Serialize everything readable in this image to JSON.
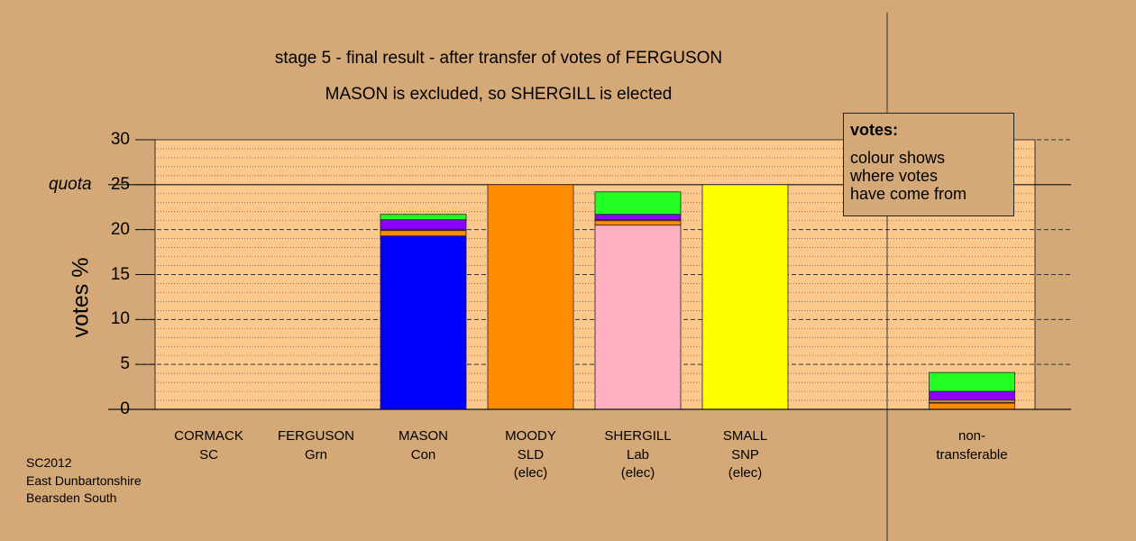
{
  "chart_data": {
    "type": "bar",
    "stacked": true,
    "title": "stage 5 - final result - after transfer of votes of FERGUSON",
    "subtitle": "MASON is excluded, so SHERGILL is elected",
    "ylabel": "votes %",
    "ylim": [
      0,
      30
    ],
    "yticks": [
      0,
      5,
      10,
      15,
      20,
      25,
      30
    ],
    "quota": 25,
    "quota_label": "quota",
    "categories": [
      {
        "name": "CORMACK",
        "party": "SC",
        "note": ""
      },
      {
        "name": "FERGUSON",
        "party": "Grn",
        "note": ""
      },
      {
        "name": "MASON",
        "party": "Con",
        "note": ""
      },
      {
        "name": "MOODY",
        "party": "SLD",
        "note": "(elec)"
      },
      {
        "name": "SHERGILL",
        "party": "Lab",
        "note": "(elec)"
      },
      {
        "name": "SMALL",
        "party": "SNP",
        "note": "(elec)"
      },
      {
        "name": "non-",
        "party": "transferable",
        "note": ""
      }
    ],
    "stacks": [
      [],
      [],
      [
        {
          "color": "#0000ff",
          "value": 19.3
        },
        {
          "color": "#ff8c00",
          "value": 0.6
        },
        {
          "color": "#ff3300",
          "value": 0.1
        },
        {
          "color": "#8b00ff",
          "value": 1.1
        },
        {
          "color": "#22ff22",
          "value": 0.6
        }
      ],
      [
        {
          "color": "#ff8c00",
          "value": 25.0
        }
      ],
      [
        {
          "color": "#ffb0c0",
          "value": 20.5
        },
        {
          "color": "#ff8c00",
          "value": 0.5
        },
        {
          "color": "#ff3300",
          "value": 0.1
        },
        {
          "color": "#8b00ff",
          "value": 0.6
        },
        {
          "color": "#22ff22",
          "value": 2.5
        }
      ],
      [
        {
          "color": "#ffff00",
          "value": 25.0
        }
      ],
      [
        {
          "color": "#ff8c00",
          "value": 0.7
        },
        {
          "color": "#ff3300",
          "value": 0.1
        },
        {
          "color": "#ffff00",
          "value": 0.2
        },
        {
          "color": "#8b00ff",
          "value": 1.0
        },
        {
          "color": "#22ff22",
          "value": 2.1
        }
      ]
    ],
    "legend": {
      "title": "votes:",
      "lines": [
        "colour shows",
        "where votes",
        "have come from"
      ]
    },
    "colors": {
      "background": "#d4a977",
      "plot": "#fdc88c"
    }
  },
  "footer": [
    "SC2012",
    "East Dunbartonshire",
    "Bearsden South"
  ]
}
